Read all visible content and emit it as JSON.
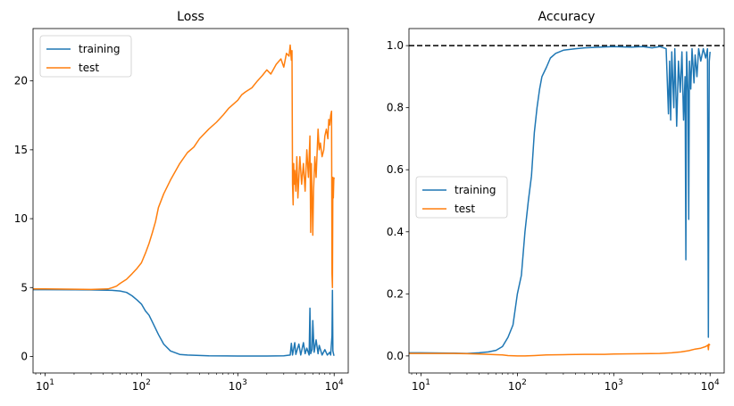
{
  "chart_data": [
    {
      "type": "line",
      "title": "Loss",
      "xscale": "log",
      "xlim": [
        7.5,
        14000
      ],
      "ylim": [
        -1.2,
        23.8
      ],
      "xticks": [
        {
          "value": 10,
          "base": "10",
          "exp": "1"
        },
        {
          "value": 100,
          "base": "10",
          "exp": "2"
        },
        {
          "value": 1000,
          "base": "10",
          "exp": "3"
        },
        {
          "value": 10000,
          "base": "10",
          "exp": "4"
        }
      ],
      "yticks": [
        {
          "value": 0,
          "label": "0"
        },
        {
          "value": 5,
          "label": "5"
        },
        {
          "value": 10,
          "label": "10"
        },
        {
          "value": 15,
          "label": "15"
        },
        {
          "value": 20,
          "label": "20"
        }
      ],
      "legend": {
        "location": "upper-left"
      },
      "series": [
        {
          "name": "training",
          "color": "#1f77b4",
          "points": [
            [
              7.5,
              4.85
            ],
            [
              10,
              4.85
            ],
            [
              20,
              4.84
            ],
            [
              30,
              4.83
            ],
            [
              50,
              4.8
            ],
            [
              60,
              4.75
            ],
            [
              70,
              4.65
            ],
            [
              80,
              4.4
            ],
            [
              90,
              4.1
            ],
            [
              100,
              3.8
            ],
            [
              110,
              3.3
            ],
            [
              120,
              3.0
            ],
            [
              130,
              2.5
            ],
            [
              150,
              1.6
            ],
            [
              170,
              0.9
            ],
            [
              200,
              0.4
            ],
            [
              250,
              0.15
            ],
            [
              300,
              0.1
            ],
            [
              500,
              0.05
            ],
            [
              1000,
              0.03
            ],
            [
              2000,
              0.03
            ],
            [
              3000,
              0.05
            ],
            [
              3500,
              0.1
            ],
            [
              3600,
              0.95
            ],
            [
              3700,
              0.1
            ],
            [
              3900,
              1.0
            ],
            [
              4000,
              0.15
            ],
            [
              4300,
              0.9
            ],
            [
              4500,
              0.1
            ],
            [
              4800,
              1.0
            ],
            [
              5000,
              0.2
            ],
            [
              5200,
              0.6
            ],
            [
              5500,
              0.1
            ],
            [
              5600,
              3.5
            ],
            [
              5700,
              0.2
            ],
            [
              5900,
              0.5
            ],
            [
              6000,
              2.6
            ],
            [
              6200,
              0.3
            ],
            [
              6500,
              1.2
            ],
            [
              6800,
              0.2
            ],
            [
              7000,
              0.8
            ],
            [
              7500,
              0.1
            ],
            [
              8000,
              0.5
            ],
            [
              8500,
              0.1
            ],
            [
              9000,
              0.3
            ],
            [
              9200,
              0.1
            ],
            [
              9500,
              1.5
            ],
            [
              9600,
              4.8
            ],
            [
              9700,
              0.4
            ],
            [
              9900,
              0.1
            ],
            [
              10000,
              0.05
            ]
          ]
        },
        {
          "name": "test",
          "color": "#ff7f0e",
          "points": [
            [
              7.5,
              4.9
            ],
            [
              10,
              4.9
            ],
            [
              20,
              4.88
            ],
            [
              30,
              4.86
            ],
            [
              45,
              4.9
            ],
            [
              50,
              5.0
            ],
            [
              55,
              5.1
            ],
            [
              60,
              5.3
            ],
            [
              70,
              5.6
            ],
            [
              80,
              6.0
            ],
            [
              90,
              6.4
            ],
            [
              100,
              6.8
            ],
            [
              110,
              7.5
            ],
            [
              120,
              8.2
            ],
            [
              130,
              9.0
            ],
            [
              140,
              9.8
            ],
            [
              150,
              10.8
            ],
            [
              170,
              11.8
            ],
            [
              200,
              12.8
            ],
            [
              250,
              14.0
            ],
            [
              300,
              14.8
            ],
            [
              350,
              15.2
            ],
            [
              400,
              15.8
            ],
            [
              500,
              16.5
            ],
            [
              600,
              17.0
            ],
            [
              700,
              17.5
            ],
            [
              800,
              18.0
            ],
            [
              1000,
              18.6
            ],
            [
              1100,
              19.0
            ],
            [
              1200,
              19.2
            ],
            [
              1400,
              19.5
            ],
            [
              1600,
              20.0
            ],
            [
              1800,
              20.4
            ],
            [
              2000,
              20.8
            ],
            [
              2200,
              20.5
            ],
            [
              2500,
              21.2
            ],
            [
              2800,
              21.6
            ],
            [
              3000,
              21.0
            ],
            [
              3200,
              22.0
            ],
            [
              3400,
              21.8
            ],
            [
              3500,
              22.6
            ],
            [
              3600,
              21.5
            ],
            [
              3650,
              22.2
            ],
            [
              3700,
              12.5
            ],
            [
              3750,
              11.0
            ],
            [
              3800,
              14.0
            ],
            [
              3850,
              12.5
            ],
            [
              3900,
              13.5
            ],
            [
              4000,
              12.0
            ],
            [
              4100,
              14.5
            ],
            [
              4200,
              11.5
            ],
            [
              4400,
              14.5
            ],
            [
              4600,
              12.5
            ],
            [
              4800,
              14.0
            ],
            [
              5000,
              12.0
            ],
            [
              5200,
              15.0
            ],
            [
              5400,
              13.0
            ],
            [
              5600,
              16.0
            ],
            [
              5700,
              9.0
            ],
            [
              5800,
              14.0
            ],
            [
              6000,
              8.8
            ],
            [
              6100,
              12.0
            ],
            [
              6300,
              14.5
            ],
            [
              6500,
              13.0
            ],
            [
              6800,
              16.5
            ],
            [
              7000,
              15.0
            ],
            [
              7200,
              15.5
            ],
            [
              7500,
              14.5
            ],
            [
              7800,
              15.0
            ],
            [
              8000,
              16.0
            ],
            [
              8300,
              16.5
            ],
            [
              8600,
              15.8
            ],
            [
              8800,
              17.2
            ],
            [
              9000,
              16.8
            ],
            [
              9200,
              17.5
            ],
            [
              9400,
              17.8
            ],
            [
              9500,
              6.0
            ],
            [
              9600,
              5.0
            ],
            [
              9700,
              13.0
            ],
            [
              9800,
              11.5
            ],
            [
              9900,
              12.8
            ],
            [
              10000,
              13.0
            ]
          ]
        }
      ]
    },
    {
      "type": "line",
      "title": "Accuracy",
      "xscale": "log",
      "xlim": [
        7.5,
        14000
      ],
      "ylim": [
        -0.055,
        1.055
      ],
      "hline": {
        "y": 1.0,
        "style": "dashed",
        "color": "#000000"
      },
      "xticks": [
        {
          "value": 10,
          "base": "10",
          "exp": "1"
        },
        {
          "value": 100,
          "base": "10",
          "exp": "2"
        },
        {
          "value": 1000,
          "base": "10",
          "exp": "3"
        },
        {
          "value": 10000,
          "base": "10",
          "exp": "4"
        }
      ],
      "yticks": [
        {
          "value": 0.0,
          "label": "0.0"
        },
        {
          "value": 0.2,
          "label": "0.2"
        },
        {
          "value": 0.4,
          "label": "0.4"
        },
        {
          "value": 0.6,
          "label": "0.6"
        },
        {
          "value": 0.8,
          "label": "0.8"
        },
        {
          "value": 1.0,
          "label": "1.0"
        }
      ],
      "legend": {
        "location": "center-left"
      },
      "series": [
        {
          "name": "training",
          "color": "#1f77b4",
          "points": [
            [
              7.5,
              0.01
            ],
            [
              10,
              0.01
            ],
            [
              20,
              0.009
            ],
            [
              30,
              0.008
            ],
            [
              40,
              0.01
            ],
            [
              50,
              0.013
            ],
            [
              60,
              0.018
            ],
            [
              70,
              0.03
            ],
            [
              80,
              0.06
            ],
            [
              90,
              0.1
            ],
            [
              100,
              0.2
            ],
            [
              110,
              0.26
            ],
            [
              120,
              0.4
            ],
            [
              130,
              0.5
            ],
            [
              140,
              0.58
            ],
            [
              150,
              0.72
            ],
            [
              160,
              0.8
            ],
            [
              170,
              0.86
            ],
            [
              180,
              0.9
            ],
            [
              200,
              0.93
            ],
            [
              220,
              0.96
            ],
            [
              250,
              0.975
            ],
            [
              300,
              0.985
            ],
            [
              400,
              0.99
            ],
            [
              500,
              0.993
            ],
            [
              700,
              0.995
            ],
            [
              1000,
              0.997
            ],
            [
              1500,
              0.995
            ],
            [
              2000,
              0.997
            ],
            [
              2500,
              0.993
            ],
            [
              3000,
              0.997
            ],
            [
              3500,
              0.99
            ],
            [
              3700,
              0.78
            ],
            [
              3800,
              0.95
            ],
            [
              3900,
              0.76
            ],
            [
              4000,
              0.98
            ],
            [
              4200,
              0.8
            ],
            [
              4300,
              0.99
            ],
            [
              4500,
              0.74
            ],
            [
              4700,
              0.95
            ],
            [
              4900,
              0.85
            ],
            [
              5100,
              0.98
            ],
            [
              5300,
              0.76
            ],
            [
              5500,
              0.9
            ],
            [
              5600,
              0.31
            ],
            [
              5700,
              0.98
            ],
            [
              5900,
              0.85
            ],
            [
              6000,
              0.44
            ],
            [
              6100,
              0.95
            ],
            [
              6300,
              0.86
            ],
            [
              6500,
              0.99
            ],
            [
              6800,
              0.88
            ],
            [
              7000,
              0.97
            ],
            [
              7300,
              0.9
            ],
            [
              7600,
              0.99
            ],
            [
              8000,
              0.95
            ],
            [
              8500,
              0.99
            ],
            [
              9000,
              0.96
            ],
            [
              9400,
              0.99
            ],
            [
              9600,
              0.06
            ],
            [
              9700,
              0.59
            ],
            [
              9800,
              0.95
            ],
            [
              10000,
              0.98
            ]
          ]
        },
        {
          "name": "test",
          "color": "#ff7f0e",
          "points": [
            [
              7.5,
              0.008
            ],
            [
              10,
              0.008
            ],
            [
              20,
              0.008
            ],
            [
              30,
              0.007
            ],
            [
              40,
              0.006
            ],
            [
              50,
              0.005
            ],
            [
              60,
              0.004
            ],
            [
              70,
              0.003
            ],
            [
              80,
              0.001
            ],
            [
              100,
              0.0
            ],
            [
              120,
              0.0
            ],
            [
              150,
              0.001
            ],
            [
              200,
              0.003
            ],
            [
              300,
              0.004
            ],
            [
              500,
              0.005
            ],
            [
              800,
              0.005
            ],
            [
              1000,
              0.006
            ],
            [
              2000,
              0.007
            ],
            [
              3000,
              0.008
            ],
            [
              4000,
              0.01
            ],
            [
              5000,
              0.013
            ],
            [
              6000,
              0.017
            ],
            [
              7000,
              0.022
            ],
            [
              8000,
              0.025
            ],
            [
              9000,
              0.03
            ],
            [
              9500,
              0.035
            ],
            [
              9600,
              0.02
            ],
            [
              9700,
              0.038
            ],
            [
              10000,
              0.035
            ]
          ]
        }
      ]
    }
  ]
}
